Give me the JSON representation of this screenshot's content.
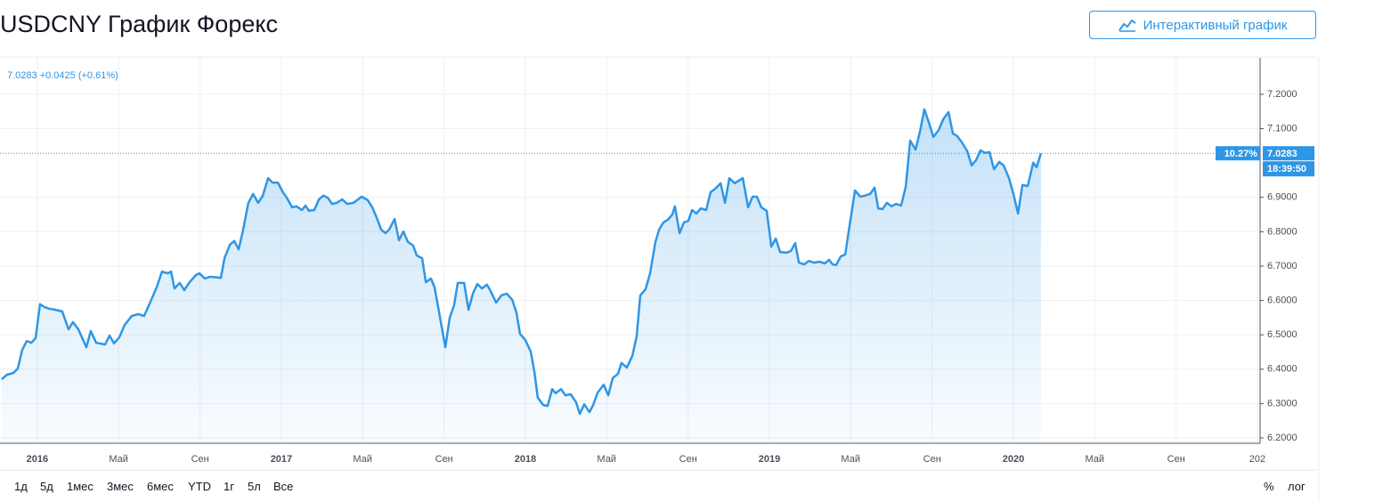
{
  "header": {
    "title": "USDCNY График Форекс",
    "button": "Интерактивный график"
  },
  "chart_data": {
    "type": "line",
    "quote": "7.0283 +0.0425 (+0.61%)",
    "change_label": "10.27%",
    "price_label": "7.0283",
    "time_label": "18:39:50",
    "color": "#2e96e6",
    "grid": true,
    "xlim": [
      2015.847,
      2021.011
    ],
    "ylim": [
      6.1845,
      7.306
    ],
    "xticks": [
      2016,
      {
        "value": 2016.333,
        "label": "Май"
      },
      {
        "value": 2016.667,
        "label": "Сен"
      },
      2017,
      {
        "value": 2017.333,
        "label": "Май"
      },
      {
        "value": 2017.667,
        "label": "Сен"
      },
      2018,
      {
        "value": 2018.333,
        "label": "Май"
      },
      {
        "value": 2018.667,
        "label": "Сен"
      },
      2019,
      {
        "value": 2019.333,
        "label": "Май"
      },
      {
        "value": 2019.667,
        "label": "Сен"
      },
      2020,
      {
        "value": 2020.333,
        "label": "Май"
      },
      {
        "value": 2020.667,
        "label": "Сен"
      },
      {
        "value": 2021,
        "label": "202"
      }
    ],
    "yticks": [
      {
        "value": 6.2,
        "label": "6.2000"
      },
      {
        "value": 6.3,
        "label": "6.3000"
      },
      {
        "value": 6.4,
        "label": "6.4000"
      },
      {
        "value": 6.5,
        "label": "6.5000"
      },
      {
        "value": 6.6,
        "label": "6.6000"
      },
      {
        "value": 6.7,
        "label": "6.7000"
      },
      {
        "value": 6.8,
        "label": "6.8000"
      },
      {
        "value": 6.9,
        "label": "6.9000"
      },
      {
        "value": 7.1,
        "label": "7.1000"
      },
      {
        "value": 7.2,
        "label": "7.2000"
      }
    ],
    "x": [
      2015.854,
      2015.876,
      2015.902,
      2015.92,
      2015.938,
      2015.957,
      2015.975,
      2015.993,
      2016.011,
      2016.029,
      2016.048,
      2016.073,
      2016.102,
      2016.128,
      2016.146,
      2016.168,
      2016.201,
      2016.219,
      2016.241,
      2016.278,
      2016.296,
      2016.314,
      2016.336,
      2016.358,
      2016.387,
      2016.413,
      2016.438,
      2016.467,
      2016.489,
      2016.511,
      2016.533,
      2016.548,
      2016.562,
      2016.584,
      2016.602,
      2016.624,
      2016.65,
      2016.665,
      2016.686,
      2016.708,
      2016.752,
      2016.767,
      2016.789,
      2016.807,
      2016.825,
      2016.843,
      2016.865,
      2016.884,
      2016.905,
      2016.924,
      2016.946,
      2016.964,
      2016.986,
      2017.004,
      2017.022,
      2017.044,
      2017.062,
      2017.084,
      2017.099,
      2017.113,
      2017.135,
      2017.154,
      2017.172,
      2017.19,
      2017.208,
      2017.227,
      2017.249,
      2017.27,
      2017.296,
      2017.329,
      2017.354,
      2017.373,
      2017.394,
      2017.409,
      2017.427,
      2017.442,
      2017.464,
      2017.482,
      2017.5,
      2017.519,
      2017.54,
      2017.555,
      2017.577,
      2017.592,
      2017.613,
      2017.628,
      2017.65,
      2017.672,
      2017.69,
      2017.708,
      2017.723,
      2017.749,
      2017.767,
      2017.785,
      2017.803,
      2017.822,
      2017.843,
      2017.858,
      2017.88,
      2017.902,
      2017.924,
      2017.946,
      2017.964,
      2017.978,
      2018.0,
      2018.022,
      2018.037,
      2018.051,
      2018.073,
      2018.091,
      2018.11,
      2018.124,
      2018.146,
      2018.164,
      2018.186,
      2018.208,
      2018.223,
      2018.241,
      2018.263,
      2018.278,
      2018.296,
      2018.321,
      2018.34,
      2018.358,
      2018.38,
      2018.394,
      2018.416,
      2018.438,
      2018.456,
      2018.471,
      2018.493,
      2018.511,
      2018.533,
      2018.548,
      2018.566,
      2018.584,
      2018.602,
      2018.613,
      2018.632,
      2018.65,
      2018.668,
      2018.683,
      2018.701,
      2018.719,
      2018.741,
      2018.759,
      2018.778,
      2018.8,
      2018.818,
      2018.836,
      2018.858,
      2018.873,
      2018.891,
      2018.913,
      2018.931,
      2018.949,
      2018.967,
      2018.989,
      2019.008,
      2019.026,
      2019.044,
      2019.07,
      2019.088,
      2019.106,
      2019.121,
      2019.143,
      2019.161,
      2019.183,
      2019.205,
      2019.227,
      2019.245,
      2019.259,
      2019.274,
      2019.292,
      2019.311,
      2019.325,
      2019.351,
      2019.373,
      2019.391,
      2019.413,
      2019.431,
      2019.446,
      2019.464,
      2019.482,
      2019.5,
      2019.519,
      2019.54,
      2019.559,
      2019.577,
      2019.599,
      2019.617,
      2019.635,
      2019.654,
      2019.672,
      2019.694,
      2019.712,
      2019.734,
      2019.752,
      2019.77,
      2019.789,
      2019.811,
      2019.829,
      2019.847,
      2019.865,
      2019.884,
      2019.902,
      2019.92,
      2019.942,
      2019.96,
      2019.982,
      2020.0,
      2020.019,
      2020.037,
      2020.059,
      2020.081,
      2020.095,
      2020.113
    ],
    "values": [
      6.371,
      6.384,
      6.389,
      6.402,
      6.456,
      6.482,
      6.477,
      6.49,
      6.589,
      6.581,
      6.576,
      6.573,
      6.568,
      6.516,
      6.537,
      6.516,
      6.464,
      6.511,
      6.477,
      6.472,
      6.498,
      6.475,
      6.493,
      6.529,
      6.555,
      6.56,
      6.555,
      6.602,
      6.638,
      6.684,
      6.679,
      6.684,
      6.635,
      6.651,
      6.63,
      6.653,
      6.674,
      6.679,
      6.664,
      6.669,
      6.666,
      6.723,
      6.762,
      6.773,
      6.749,
      6.804,
      6.884,
      6.91,
      6.884,
      6.905,
      6.956,
      6.943,
      6.943,
      6.918,
      6.899,
      6.871,
      6.874,
      6.863,
      6.876,
      6.861,
      6.863,
      6.894,
      6.905,
      6.899,
      6.881,
      6.884,
      6.894,
      6.881,
      6.884,
      6.902,
      6.892,
      6.871,
      6.835,
      6.806,
      6.796,
      6.806,
      6.837,
      6.775,
      6.801,
      6.77,
      6.76,
      6.731,
      6.723,
      6.653,
      6.664,
      6.638,
      6.552,
      6.464,
      6.55,
      6.586,
      6.651,
      6.651,
      6.573,
      6.62,
      6.648,
      6.635,
      6.646,
      6.627,
      6.594,
      6.615,
      6.62,
      6.602,
      6.563,
      6.503,
      6.485,
      6.451,
      6.392,
      6.317,
      6.296,
      6.293,
      6.342,
      6.33,
      6.342,
      6.324,
      6.327,
      6.304,
      6.27,
      6.298,
      6.275,
      6.296,
      6.332,
      6.355,
      6.324,
      6.374,
      6.387,
      6.418,
      6.405,
      6.438,
      6.495,
      6.615,
      6.633,
      6.679,
      6.77,
      6.806,
      6.827,
      6.835,
      6.85,
      6.874,
      6.796,
      6.827,
      6.832,
      6.863,
      6.853,
      6.868,
      6.863,
      6.915,
      6.925,
      6.941,
      6.884,
      6.956,
      6.941,
      6.948,
      6.956,
      6.871,
      6.902,
      6.902,
      6.871,
      6.861,
      6.757,
      6.78,
      6.741,
      6.739,
      6.744,
      6.767,
      6.71,
      6.705,
      6.715,
      6.71,
      6.713,
      6.708,
      6.718,
      6.705,
      6.703,
      6.728,
      6.734,
      6.801,
      6.92,
      6.902,
      6.905,
      6.91,
      6.928,
      6.868,
      6.866,
      6.884,
      6.874,
      6.881,
      6.876,
      6.931,
      7.065,
      7.039,
      7.091,
      7.156,
      7.117,
      7.076,
      7.096,
      7.127,
      7.148,
      7.086,
      7.078,
      7.06,
      7.034,
      6.993,
      7.008,
      7.037,
      7.029,
      7.032,
      6.982,
      7.003,
      6.993,
      6.956,
      6.91,
      6.853,
      6.936,
      6.933,
      7.001,
      6.988,
      7.0283
    ]
  },
  "toolbar": {
    "ranges": [
      "1д",
      "5д",
      "1мес",
      "3мес",
      "6мес",
      "YTD",
      "1г",
      "5л",
      "Все"
    ],
    "options": [
      "%",
      "лог"
    ]
  }
}
